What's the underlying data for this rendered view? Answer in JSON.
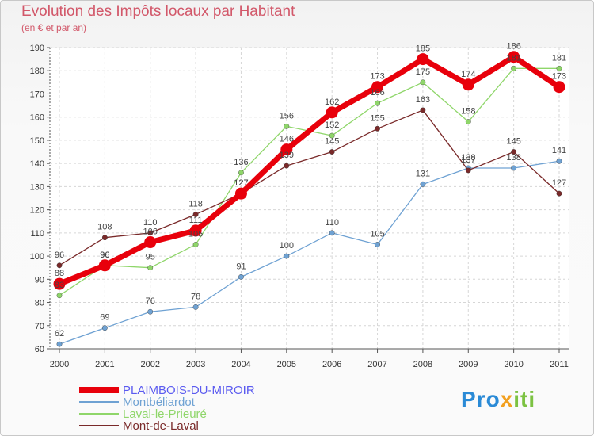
{
  "chart_data": {
    "type": "line",
    "title": "Evolution des Impôts locaux par Habitant",
    "subtitle": "(en € et par an)",
    "xlabel": "",
    "ylabel": "",
    "x": [
      "2000",
      "2001",
      "2002",
      "2003",
      "2004",
      "2005",
      "2006",
      "2007",
      "2008",
      "2009",
      "2010",
      "2011"
    ],
    "ylim": [
      60,
      190
    ],
    "yticks": [
      60,
      70,
      80,
      90,
      100,
      110,
      120,
      130,
      140,
      150,
      160,
      170,
      180,
      190
    ],
    "grid": true,
    "legend_position": "bottom-left",
    "series": [
      {
        "name": "PLAIMBOIS-DU-MIROIR",
        "color": "#e8000b",
        "values": [
          88,
          96,
          106,
          111,
          127,
          146,
          162,
          173,
          185,
          174,
          186,
          173
        ]
      },
      {
        "name": "Montbéliardot",
        "color": "#6fa2d3",
        "values": [
          62,
          69,
          76,
          78,
          91,
          100,
          110,
          105,
          131,
          138,
          138,
          141
        ]
      },
      {
        "name": "Laval-le-Prieuré",
        "color": "#8fd66a",
        "values": [
          83,
          96,
          95,
          105,
          136,
          156,
          152,
          166,
          175,
          158,
          181,
          181
        ]
      },
      {
        "name": "Mont-de-Laval",
        "color": "#7a2a2a",
        "values": [
          96,
          108,
          110,
          118,
          127,
          139,
          145,
          155,
          163,
          137,
          145,
          127
        ]
      }
    ]
  },
  "branding": {
    "logo_text": "Proxiti"
  }
}
